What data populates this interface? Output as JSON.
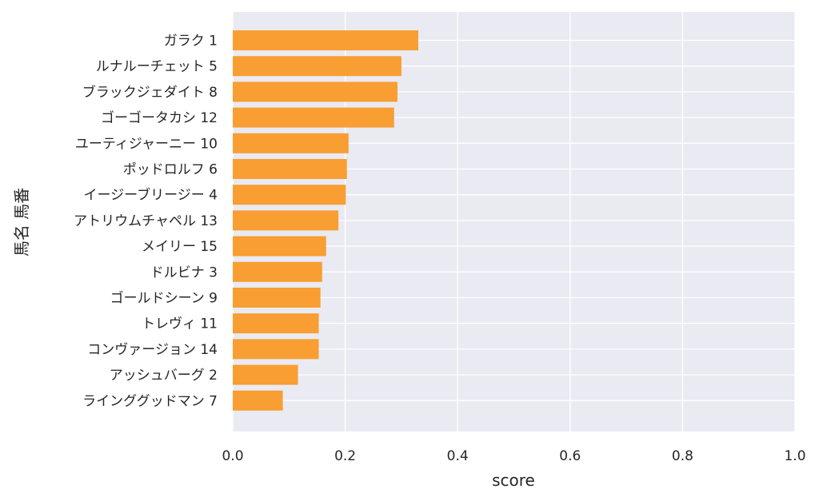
{
  "chart_data": {
    "type": "bar",
    "orientation": "horizontal",
    "title": "",
    "xlabel": "score",
    "ylabel": "馬名 馬番",
    "xlim": [
      0,
      1.0
    ],
    "x_ticks": [
      0.0,
      0.2,
      0.4,
      0.6,
      0.8,
      1.0
    ],
    "x_tick_labels": [
      "0.0",
      "0.2",
      "0.4",
      "0.6",
      "0.8",
      "1.0"
    ],
    "grid": true,
    "legend": "none",
    "colors": {
      "bar": "#f99a27",
      "plot_background": "#eaeaf2",
      "grid": "#ffffff",
      "text": "#262626"
    },
    "categories": [
      "ガラク 1",
      "ルナルーチェット 5",
      "ブラックジェダイト 8",
      "ゴーゴータカシ 12",
      "ユーティジャーニー 10",
      "ポッドロルフ 6",
      "イージーブリージー 4",
      "アトリウムチャペル 13",
      "メイリー 15",
      "ドルビナ 3",
      "ゴールドシーン 9",
      "トレヴィ 11",
      "コンヴァージョン 14",
      "アッシュバーグ 2",
      "ラインググッドマン 7"
    ],
    "values": [
      0.33,
      0.3,
      0.293,
      0.287,
      0.206,
      0.203,
      0.201,
      0.188,
      0.166,
      0.159,
      0.156,
      0.153,
      0.153,
      0.116,
      0.089
    ]
  }
}
